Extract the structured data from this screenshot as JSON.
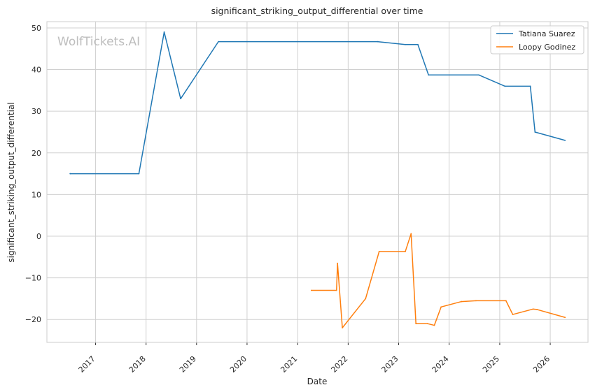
{
  "chart_data": {
    "type": "line",
    "title": "significant_striking_output_differential over time",
    "xlabel": "Date",
    "ylabel": "significant_striking_output_differential",
    "watermark": "WolfTickets.AI",
    "xlim": [
      "2016-01-15",
      "2026-10-01"
    ],
    "ylim": [
      -25.5,
      51.5
    ],
    "x_ticks": [
      "2017-01-01",
      "2018-01-01",
      "2019-01-01",
      "2020-01-01",
      "2021-01-01",
      "2022-01-01",
      "2023-01-01",
      "2024-01-01",
      "2025-01-01",
      "2026-01-01"
    ],
    "x_tick_labels": [
      "2017",
      "2018",
      "2019",
      "2020",
      "2021",
      "2022",
      "2023",
      "2024",
      "2025",
      "2026"
    ],
    "y_ticks": [
      -20,
      -10,
      0,
      10,
      20,
      30,
      40,
      50
    ],
    "y_tick_labels": [
      "−20",
      "−10",
      "0",
      "10",
      "20",
      "30",
      "40",
      "50"
    ],
    "grid": true,
    "legend_position": "top-right",
    "series": [
      {
        "name": "Tatiana Suarez",
        "color": "#1f77b4",
        "points": [
          [
            "2016-07-01",
            15.0
          ],
          [
            "2017-11-10",
            15.0
          ],
          [
            "2018-05-12",
            49.0
          ],
          [
            "2018-09-08",
            33.0
          ],
          [
            "2019-06-08",
            46.7
          ],
          [
            "2022-08-01",
            46.7
          ],
          [
            "2023-02-18",
            46.0
          ],
          [
            "2023-05-20",
            46.0
          ],
          [
            "2023-08-05",
            38.7
          ],
          [
            "2024-08-03",
            38.7
          ],
          [
            "2025-02-08",
            36.0
          ],
          [
            "2025-08-10",
            36.0
          ],
          [
            "2025-09-13",
            25.0
          ],
          [
            "2026-04-18",
            23.0
          ]
        ]
      },
      {
        "name": "Loopy Godinez",
        "color": "#ff7f0e",
        "points": [
          [
            "2021-04-10",
            -13.0
          ],
          [
            "2021-10-09",
            -13.0
          ],
          [
            "2021-10-16",
            -6.5
          ],
          [
            "2021-11-20",
            -22.0
          ],
          [
            "2022-05-07",
            -15.0
          ],
          [
            "2022-08-13",
            -3.7
          ],
          [
            "2023-02-18",
            -3.7
          ],
          [
            "2023-04-01",
            0.6
          ],
          [
            "2023-05-06",
            -21.0
          ],
          [
            "2023-07-29",
            -21.0
          ],
          [
            "2023-09-16",
            -21.4
          ],
          [
            "2023-11-04",
            -17.0
          ],
          [
            "2024-03-30",
            -15.7
          ],
          [
            "2024-07-13",
            -15.5
          ],
          [
            "2025-02-15",
            -15.5
          ],
          [
            "2025-04-05",
            -18.8
          ],
          [
            "2025-08-30",
            -17.5
          ],
          [
            "2025-09-27",
            -17.6
          ],
          [
            "2026-04-18",
            -19.5
          ]
        ]
      }
    ]
  }
}
